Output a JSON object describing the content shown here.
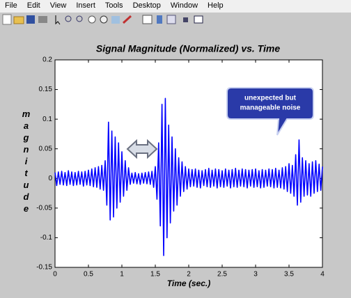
{
  "menu": [
    "File",
    "Edit",
    "View",
    "Insert",
    "Tools",
    "Desktop",
    "Window",
    "Help"
  ],
  "chart_data": {
    "type": "line",
    "title": "Signal Magnitude (Normalized) vs. Time",
    "x_label": "Time (sec.)",
    "y_label": "magnitude",
    "annotation_lines": [
      "unexpected but",
      "manageable noise"
    ],
    "xlim": [
      0,
      4
    ],
    "xticks": [
      0,
      0.5,
      1,
      1.5,
      2,
      2.5,
      3,
      3.5,
      4
    ],
    "ylim": [
      -0.15,
      0.2
    ],
    "yticks": [
      -0.15,
      -0.1,
      -0.05,
      0,
      0.05,
      0.1,
      0.15,
      0.2
    ],
    "grid": false,
    "x": [
      0,
      0.025,
      0.05,
      0.075,
      0.1,
      0.125,
      0.15,
      0.175,
      0.2,
      0.225,
      0.25,
      0.275,
      0.3,
      0.325,
      0.35,
      0.375,
      0.4,
      0.425,
      0.45,
      0.475,
      0.5,
      0.525,
      0.55,
      0.575,
      0.6,
      0.625,
      0.65,
      0.675,
      0.7,
      0.725,
      0.75,
      0.775,
      0.8,
      0.825,
      0.85,
      0.875,
      0.9,
      0.925,
      0.95,
      0.975,
      1,
      1.025,
      1.05,
      1.075,
      1.1,
      1.125,
      1.15,
      1.175,
      1.2,
      1.225,
      1.25,
      1.275,
      1.3,
      1.325,
      1.35,
      1.375,
      1.4,
      1.425,
      1.45,
      1.475,
      1.5,
      1.525,
      1.55,
      1.575,
      1.6,
      1.625,
      1.65,
      1.675,
      1.7,
      1.725,
      1.75,
      1.775,
      1.8,
      1.825,
      1.85,
      1.875,
      1.9,
      1.925,
      1.95,
      1.975,
      2,
      2.025,
      2.05,
      2.075,
      2.1,
      2.125,
      2.15,
      2.175,
      2.2,
      2.225,
      2.25,
      2.275,
      2.3,
      2.325,
      2.35,
      2.375,
      2.4,
      2.425,
      2.45,
      2.475,
      2.5,
      2.525,
      2.55,
      2.575,
      2.6,
      2.625,
      2.65,
      2.675,
      2.7,
      2.725,
      2.75,
      2.775,
      2.8,
      2.825,
      2.85,
      2.875,
      2.9,
      2.925,
      2.95,
      2.975,
      3,
      3.025,
      3.05,
      3.075,
      3.1,
      3.125,
      3.15,
      3.175,
      3.2,
      3.225,
      3.25,
      3.275,
      3.3,
      3.325,
      3.35,
      3.375,
      3.4,
      3.425,
      3.45,
      3.475,
      3.5,
      3.525,
      3.55,
      3.575,
      3.6,
      3.625,
      3.65,
      3.675,
      3.7,
      3.725,
      3.75,
      3.775,
      3.8,
      3.825,
      3.85,
      3.875,
      3.9,
      3.925,
      3.95,
      3.975,
      4
    ],
    "series": [
      {
        "color": "#0000ff",
        "values": [
          0.01,
          -0.012,
          0.011,
          -0.01,
          0.012,
          -0.011,
          0.01,
          -0.012,
          0.013,
          -0.01,
          0.011,
          -0.012,
          0.01,
          -0.011,
          0.012,
          -0.01,
          0.011,
          -0.013,
          0.012,
          -0.011,
          0.014,
          -0.012,
          0.016,
          -0.014,
          0.018,
          -0.015,
          0.02,
          -0.018,
          0.022,
          -0.02,
          0.03,
          -0.045,
          0.095,
          -0.07,
          0.08,
          -0.065,
          0.07,
          -0.05,
          0.06,
          -0.04,
          0.045,
          -0.03,
          0.03,
          -0.02,
          0.018,
          -0.01,
          0.009,
          -0.008,
          0.01,
          -0.009,
          0.008,
          -0.01,
          0.009,
          -0.008,
          0.01,
          -0.009,
          0.011,
          -0.01,
          0.012,
          -0.015,
          0.02,
          -0.035,
          0.06,
          -0.08,
          0.125,
          -0.13,
          0.135,
          -0.1,
          0.09,
          -0.075,
          0.07,
          -0.055,
          0.05,
          -0.045,
          0.035,
          -0.03,
          0.028,
          -0.022,
          0.02,
          -0.018,
          0.016,
          -0.014,
          0.015,
          -0.013,
          0.016,
          -0.015,
          0.014,
          -0.016,
          0.013,
          -0.012,
          0.015,
          -0.014,
          0.017,
          -0.015,
          0.014,
          -0.013,
          0.016,
          -0.016,
          0.015,
          -0.014,
          0.013,
          -0.015,
          0.016,
          -0.013,
          0.014,
          -0.016,
          0.015,
          -0.014,
          0.017,
          -0.015,
          0.014,
          -0.013,
          0.016,
          -0.014,
          0.015,
          -0.016,
          0.014,
          -0.013,
          0.015,
          -0.015,
          0.016,
          -0.014,
          0.013,
          -0.016,
          0.015,
          -0.015,
          0.014,
          -0.013,
          0.016,
          -0.014,
          0.015,
          -0.016,
          0.017,
          -0.015,
          0.014,
          -0.016,
          0.018,
          -0.018,
          0.02,
          -0.022,
          0.025,
          -0.025,
          0.022,
          -0.03,
          0.04,
          -0.045,
          0.065,
          -0.04,
          0.035,
          -0.03,
          0.03,
          -0.028,
          0.025,
          -0.03,
          0.028,
          -0.025,
          0.03,
          -0.022,
          0.024,
          -0.02,
          0.02
        ]
      }
    ]
  }
}
